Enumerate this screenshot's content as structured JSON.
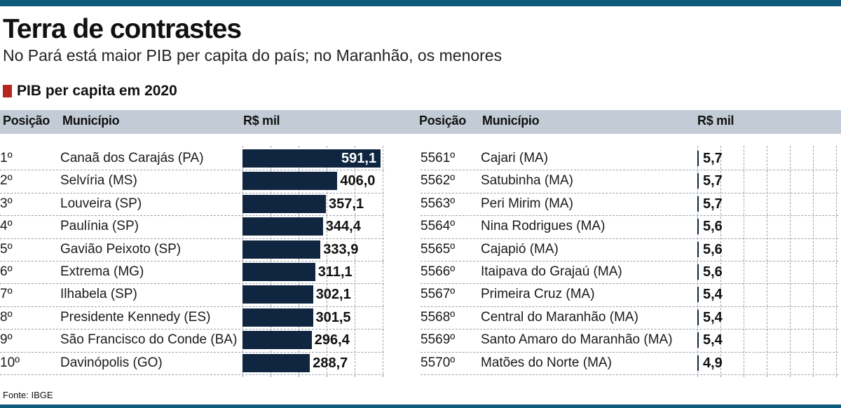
{
  "header": {
    "title": "Terra de contrastes",
    "subtitle": "No Pará está maior PIB per capita do país; no Maranhão, os menores",
    "section": "PIB per capita em 2020"
  },
  "table_headers": {
    "position": "Posição",
    "municipality": "Município",
    "value": "R$ mil"
  },
  "source": "Fonte: IBGE",
  "colors": {
    "accent": "#0e5a7a",
    "bar": "#0f2540",
    "marker": "#b5271e",
    "header_band": "#c3ccd6"
  },
  "chart_data": [
    {
      "type": "bar",
      "orientation": "horizontal",
      "title": "PIB per capita em 2020",
      "unit": "R$ mil",
      "xlim": [
        0,
        600
      ],
      "positions": [
        "1º",
        "2º",
        "3º",
        "4º",
        "5º",
        "6º",
        "7º",
        "8º",
        "9º",
        "10º"
      ],
      "categories": [
        "Canaã dos Carajás (PA)",
        "Selvíria (MS)",
        "Louveira (SP)",
        "Paulínia (SP)",
        "Gavião Peixoto (SP)",
        "Extrema (MG)",
        "Ilhabela (SP)",
        "Presidente Kennedy (ES)",
        "São Francisco do Conde (BA)",
        "Davinópolis (GO)"
      ],
      "values": [
        591.1,
        406.0,
        357.1,
        344.4,
        333.9,
        311.1,
        302.1,
        301.5,
        296.4,
        288.7
      ],
      "labels": [
        "591,1",
        "406,0",
        "357,1",
        "344,4",
        "333,9",
        "311,1",
        "302,1",
        "301,5",
        "296,4",
        "288,7"
      ]
    },
    {
      "type": "bar",
      "orientation": "horizontal",
      "title": "PIB per capita em 2020",
      "unit": "R$ mil",
      "xlim": [
        0,
        600
      ],
      "positions": [
        "5561º",
        "5562º",
        "5563º",
        "5564º",
        "5565º",
        "5566º",
        "5567º",
        "5568º",
        "5569º",
        "5570º"
      ],
      "categories": [
        "Cajari (MA)",
        "Satubinha (MA)",
        "Peri Mirim (MA)",
        "Nina Rodrigues (MA)",
        "Cajapió (MA)",
        "Itaipava do Grajaú (MA)",
        "Primeira Cruz (MA)",
        "Central do Maranhão (MA)",
        "Santo Amaro do Maranhão (MA)",
        "Matões do Norte (MA)"
      ],
      "values": [
        5.7,
        5.7,
        5.7,
        5.6,
        5.6,
        5.6,
        5.4,
        5.4,
        5.4,
        4.9
      ],
      "labels": [
        "5,7",
        "5,7",
        "5,7",
        "5,6",
        "5,6",
        "5,6",
        "5,4",
        "5,4",
        "5,4",
        "4,9"
      ]
    }
  ]
}
